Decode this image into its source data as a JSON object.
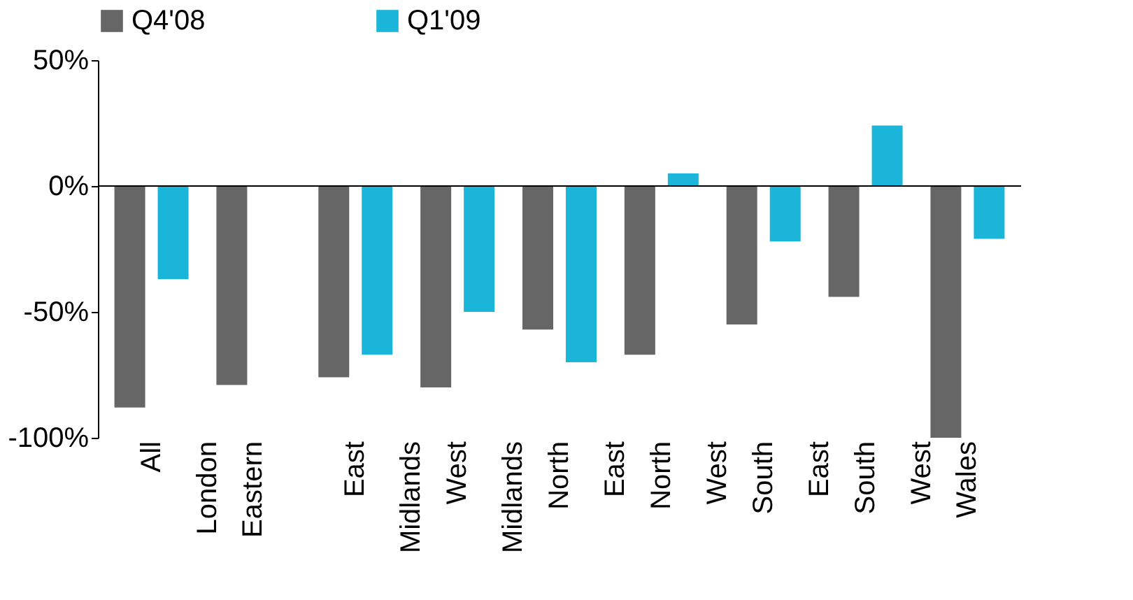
{
  "chart_data": {
    "type": "bar",
    "categories": [
      "All London",
      "Eastern",
      "East Midlands",
      "West Midlands",
      "North East",
      "North West",
      "South East",
      "South West",
      "Wales"
    ],
    "series": [
      {
        "name": "Q4'08",
        "color": "#666666",
        "values": [
          -88,
          -79,
          -76,
          -80,
          -57,
          -67,
          -55,
          -44,
          -100
        ]
      },
      {
        "name": "Q1'09",
        "color": "#1ab5d8",
        "values": [
          -37,
          null,
          -67,
          -50,
          -70,
          5,
          -22,
          24,
          -21
        ]
      }
    ],
    "ylim": [
      -100,
      50
    ],
    "yticks": [
      {
        "value": -100,
        "label": "-100%"
      },
      {
        "value": -50,
        "label": "-50%"
      },
      {
        "value": 0,
        "label": "0%"
      },
      {
        "value": 50,
        "label": "50%"
      }
    ],
    "ref_lines": [
      {
        "axis": "y",
        "value": 0
      }
    ],
    "legend": "top"
  }
}
